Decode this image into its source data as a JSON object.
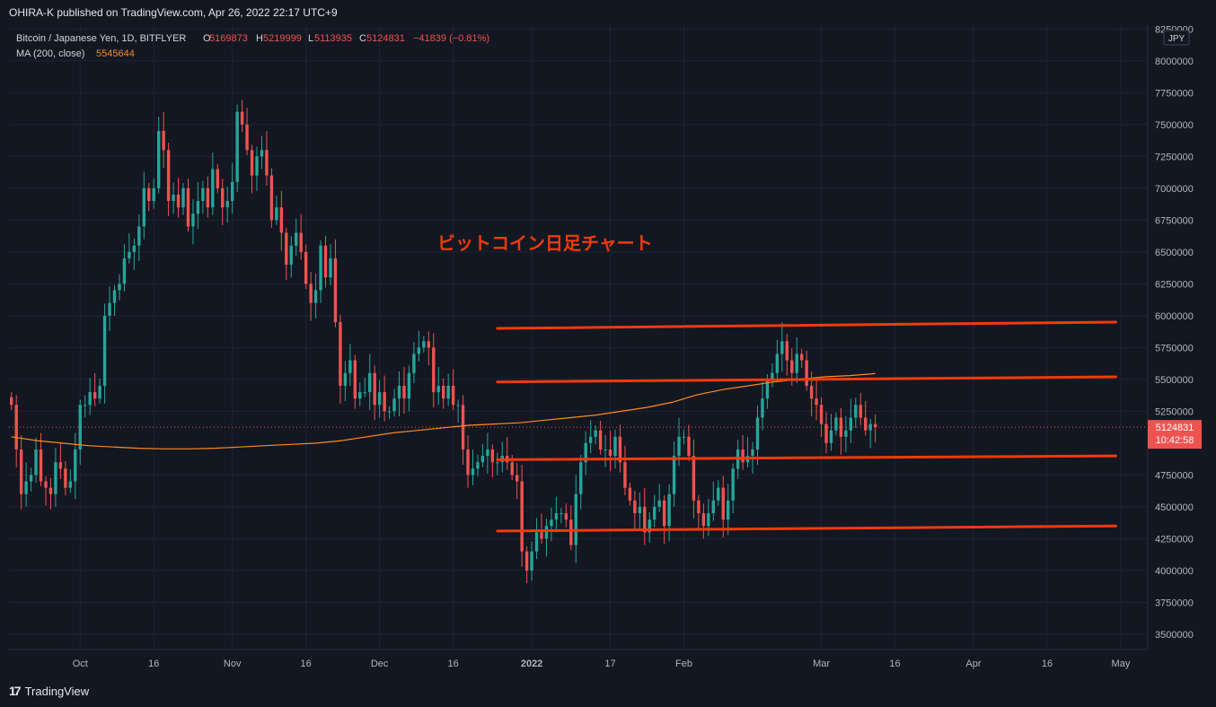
{
  "publish_line": "OHIRA-K published on TradingView.com, Apr 26, 2022 22:17 UTC+9",
  "footer_brand": "TradingView",
  "footer_mark": "17",
  "chart_data": {
    "type": "candlestick",
    "legend": {
      "symbol": "Bitcoin / Japanese Yen, 1D, BITFLYER",
      "open_label": "O",
      "open": "5169873",
      "high_label": "H",
      "high": "5219999",
      "low_label": "L",
      "low": "5113935",
      "close_label": "C",
      "close": "5124831",
      "change": "−41839 (−0.81%)",
      "ma_label": "MA (200, close)",
      "ma_value": "5545644"
    },
    "annotation": "ビットコイン日足チャート",
    "currency": "JPY",
    "last_price": "5124831",
    "countdown": "10:42:58",
    "y_ticks": [
      8250000,
      8000000,
      7750000,
      7500000,
      7250000,
      7000000,
      6750000,
      6500000,
      6250000,
      6000000,
      5750000,
      5500000,
      5250000,
      4750000,
      4500000,
      4250000,
      4000000,
      3750000,
      3500000
    ],
    "ylim": [
      3380000,
      8280000
    ],
    "x_ticks": [
      {
        "label": "Oct",
        "date": "2021-10-01"
      },
      {
        "label": "16",
        "date": "2021-10-16"
      },
      {
        "label": "Nov",
        "date": "2021-11-01"
      },
      {
        "label": "16",
        "date": "2021-11-16"
      },
      {
        "label": "Dec",
        "date": "2021-12-01"
      },
      {
        "label": "16",
        "date": "2021-12-16"
      },
      {
        "label": "2022",
        "date": "2022-01-01"
      },
      {
        "label": "17",
        "date": "2022-01-17"
      },
      {
        "label": "Feb",
        "date": "2022-02-01"
      },
      {
        "label": "Mar",
        "date": "2022-03-01"
      },
      {
        "label": "16",
        "date": "2022-03-16"
      },
      {
        "label": "Apr",
        "date": "2022-04-01"
      },
      {
        "label": "16",
        "date": "2022-04-16"
      },
      {
        "label": "May",
        "date": "2022-05-01"
      }
    ],
    "first_date": "2021-09-17",
    "closes": [
      5300000,
      4950000,
      4600000,
      4700000,
      4750000,
      4950000,
      4700000,
      4650000,
      4600000,
      4850000,
      4800000,
      4650000,
      4700000,
      4950000,
      5300000,
      5300000,
      5400000,
      5350000,
      5450000,
      6000000,
      6100000,
      6200000,
      6250000,
      6450000,
      6500000,
      6550000,
      6700000,
      7000000,
      6900000,
      7000000,
      7450000,
      7300000,
      6900000,
      6950000,
      6850000,
      7000000,
      6700000,
      6800000,
      6900000,
      7000000,
      6850000,
      7150000,
      7000000,
      6850000,
      6900000,
      7050000,
      7600000,
      7500000,
      7300000,
      7100000,
      7250000,
      7300000,
      7100000,
      6750000,
      6850000,
      6650000,
      6400000,
      6550000,
      6650000,
      6500000,
      6250000,
      6100000,
      6200000,
      6550000,
      6300000,
      6450000,
      5950000,
      5450000,
      5550000,
      5650000,
      5350000,
      5400000,
      5400000,
      5550000,
      5300000,
      5400000,
      5250000,
      5250000,
      5350000,
      5450000,
      5350000,
      5550000,
      5700000,
      5750000,
      5800000,
      5750000,
      5400000,
      5450000,
      5350000,
      5450000,
      5300000,
      5300000,
      4950000,
      4750000,
      4800000,
      4850000,
      4900000,
      4950000,
      4850000,
      4850000,
      4900000,
      4850000,
      4750000,
      4700000,
      4150000,
      4000000,
      4150000,
      4300000,
      4250000,
      4350000,
      4400000,
      4450000,
      4450000,
      4400000,
      4200000,
      4600000,
      4850000,
      5000000,
      5050000,
      5100000,
      4950000,
      4950000,
      4900000,
      5050000,
      4850000,
      4650000,
      4550000,
      4450000,
      4500000,
      4300000,
      4400000,
      4500000,
      4550000,
      4350000,
      4600000,
      4900000,
      5050000,
      5050000,
      4900000,
      4550000,
      4450000,
      4350000,
      4450000,
      4550000,
      4650000,
      4400000,
      4550000,
      4800000,
      4950000,
      4850000,
      4900000,
      4950000,
      5200000,
      5350000,
      5500000,
      5550000,
      5700000,
      5800000,
      5650000,
      5550000,
      5700000,
      5650000,
      5450000,
      5350000,
      5300000,
      5150000,
      5000000,
      5100000,
      5200000,
      5050000,
      5100000,
      5200000,
      5300000,
      5200000,
      5100000,
      5150000,
      5124831
    ],
    "ma": [
      5050000,
      5020000,
      5000000,
      4980000,
      4970000,
      4960000,
      4955000,
      4955000,
      4960000,
      4970000,
      4980000,
      4990000,
      5000000,
      5020000,
      5050000,
      5080000,
      5100000,
      5120000,
      5140000,
      5150000,
      5160000,
      5180000,
      5200000,
      5220000,
      5250000,
      5280000,
      5320000,
      5380000,
      5420000,
      5450000,
      5480000,
      5500000,
      5520000,
      5530000,
      5545644
    ]
  },
  "support_lines": [
    {
      "from": "2021-12-25",
      "from_price": 5900000,
      "to": "2022-04-30",
      "to_price": 5950000
    },
    {
      "from": "2021-12-25",
      "from_price": 5480000,
      "to": "2022-04-30",
      "to_price": 5520000
    },
    {
      "from": "2021-12-25",
      "from_price": 4870000,
      "to": "2022-04-30",
      "to_price": 4900000
    },
    {
      "from": "2021-12-25",
      "from_price": 4310000,
      "to": "2022-04-30",
      "to_price": 4350000
    }
  ],
  "colors": {
    "up": "#26a69a",
    "down": "#ef5350",
    "ma": "#ff8a1d",
    "line": "#f23a0c",
    "bg": "#131722",
    "grid": "#1f2433",
    "text": "#b2b5be"
  }
}
